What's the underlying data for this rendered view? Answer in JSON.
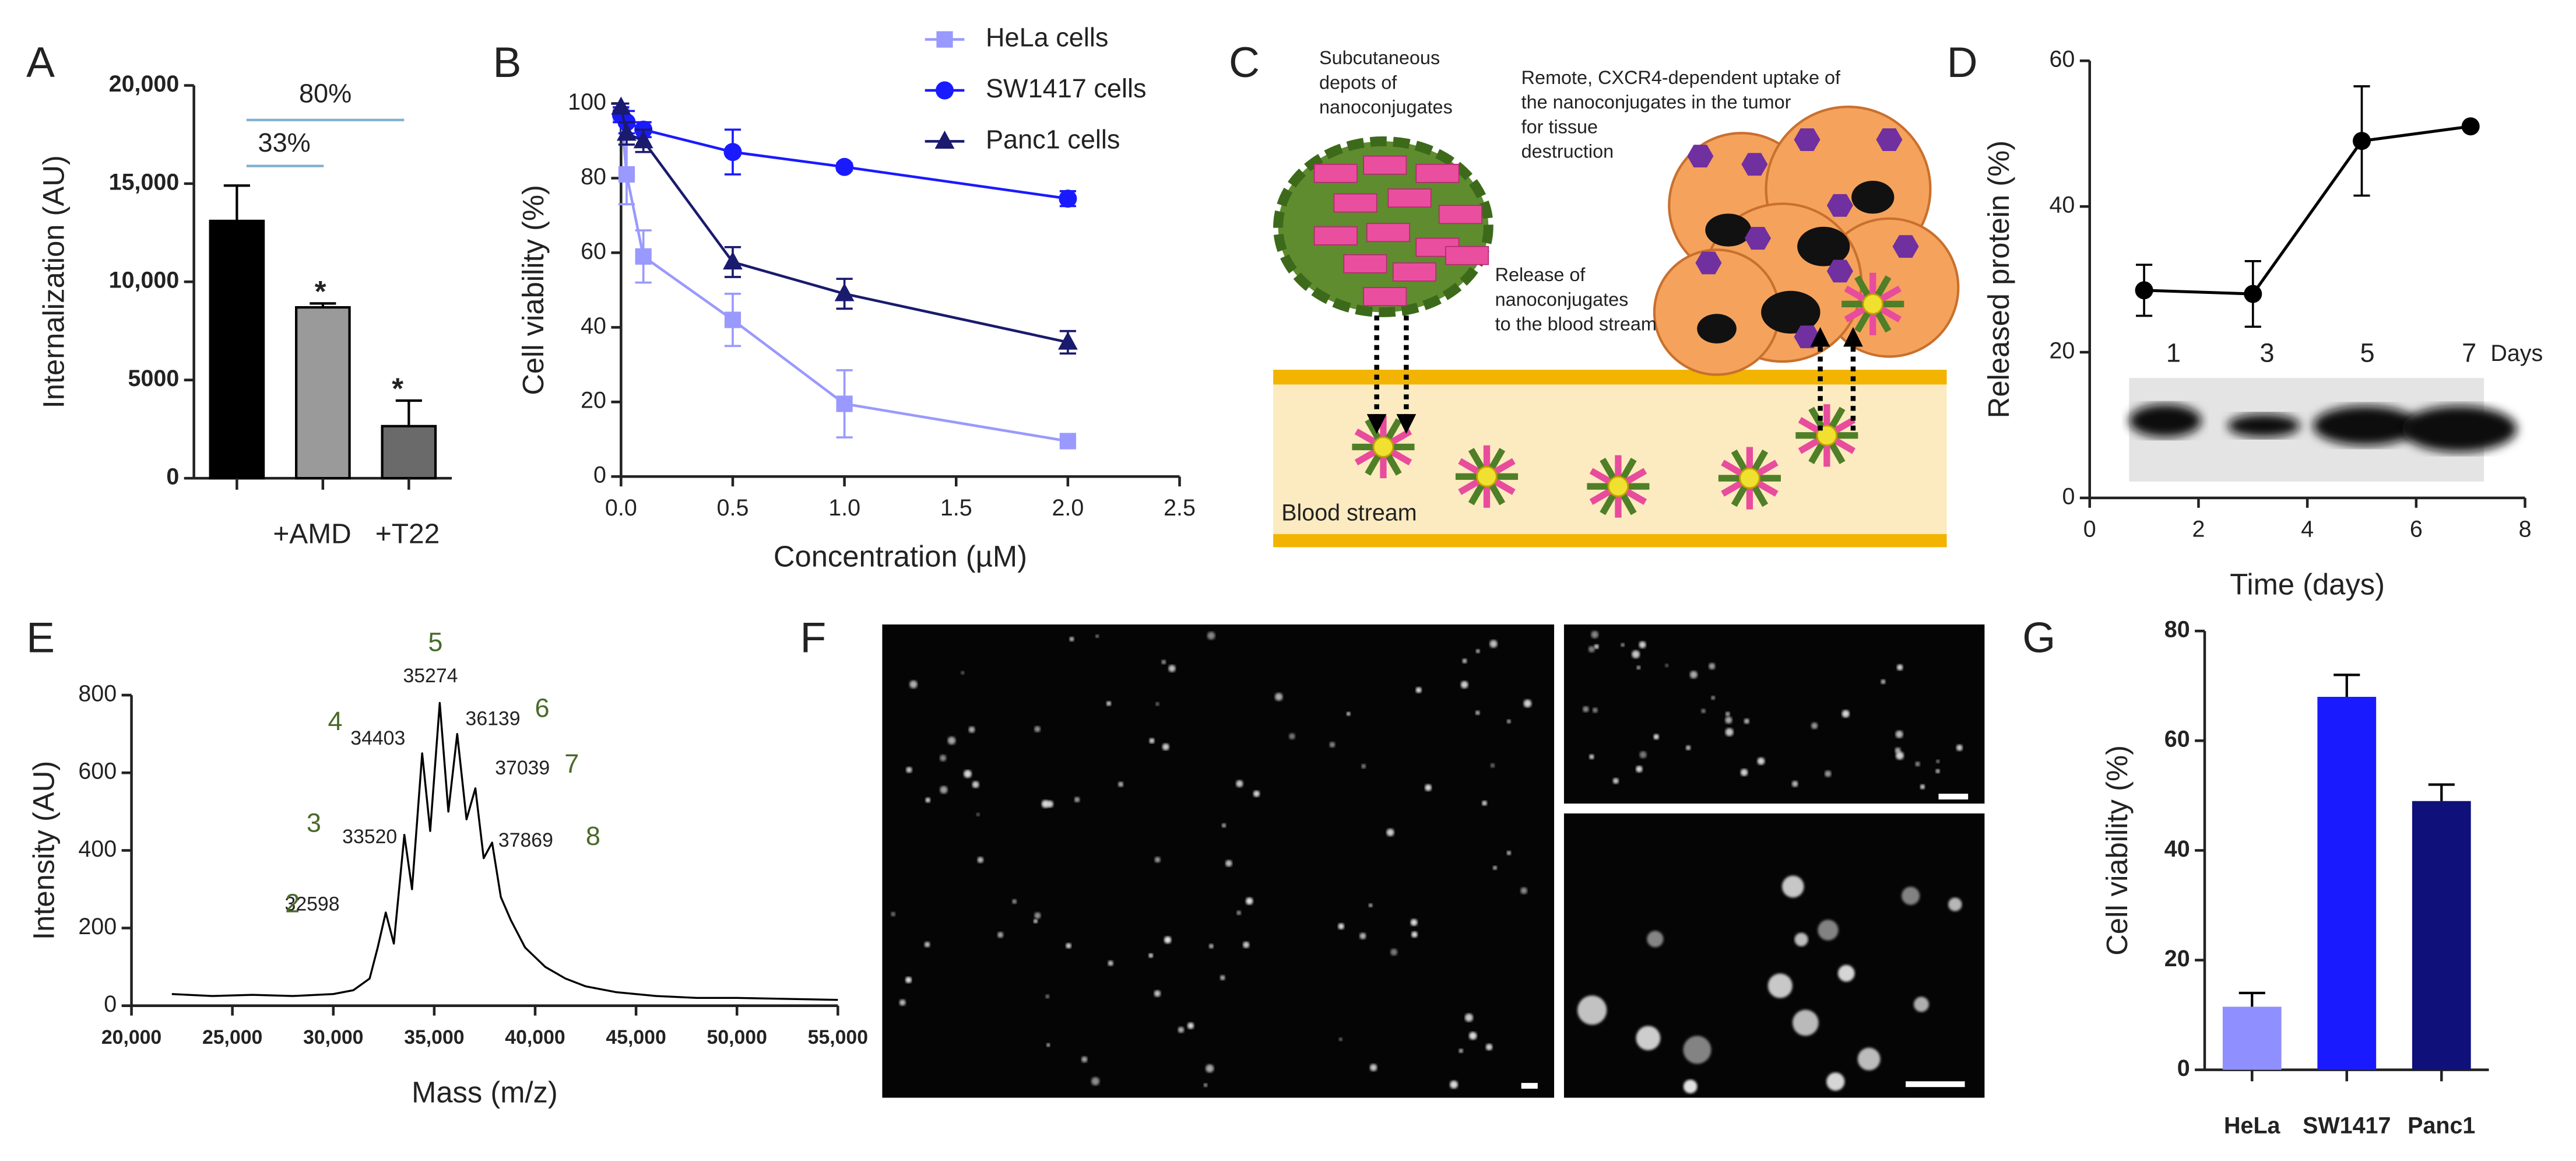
{
  "chart_data": [
    {
      "panel": "A",
      "type": "bar",
      "ylabel": "Internalization (AU)",
      "categories": [
        null,
        "+AMD",
        "+T22"
      ],
      "values": [
        13100,
        8700,
        2650
      ],
      "errors": [
        1800,
        200,
        1300
      ],
      "colors": [
        "#000000",
        "#9a9a9a",
        "#6a6a6a"
      ],
      "ylim": [
        0,
        20000
      ],
      "yticks": [
        0,
        5000,
        {
          "value": 10000,
          "label": "10,000"
        },
        {
          "value": 15000,
          "label": "15,000"
        },
        {
          "value": 20000,
          "label": "20,000"
        }
      ],
      "annotations": [
        "80%",
        "33%",
        "*",
        "*"
      ]
    },
    {
      "panel": "B",
      "type": "line",
      "ylabel": "Cell viability (%)",
      "xlabel": "Concentration (µM)",
      "x": [
        0,
        0.025,
        0.1,
        0.5,
        1,
        2
      ],
      "series": [
        {
          "name": "HeLa cells",
          "color": "#9999ff",
          "marker": "square",
          "values": [
            97,
            81,
            59,
            42,
            19.5,
            9.5
          ],
          "errors": [
            2,
            8,
            7,
            7,
            9,
            1
          ]
        },
        {
          "name": "SW1417 cells",
          "color": "#1a1aff",
          "marker": "circle",
          "values": [
            97,
            95,
            93,
            87,
            83,
            74.5
          ],
          "errors": [
            2,
            3,
            2,
            6,
            1,
            2
          ]
        },
        {
          "name": "Panc1 cells",
          "color": "#1a1a6e",
          "marker": "triangle",
          "values": [
            99,
            92,
            90,
            57.5,
            49,
            36
          ],
          "errors": [
            1,
            3,
            3,
            4,
            4,
            3
          ]
        }
      ],
      "xlim": [
        0,
        2.5
      ],
      "xticks": [
        {
          "value": 0,
          "label": "0.0"
        },
        0.5,
        {
          "value": 1,
          "label": "1.0"
        },
        1.5,
        {
          "value": 2,
          "label": "2.0"
        },
        2.5
      ],
      "ylim": [
        0,
        100
      ],
      "yticks": [
        0,
        20,
        40,
        60,
        80,
        100
      ]
    },
    {
      "panel": "D",
      "type": "line",
      "ylabel": "Released protein (%)",
      "xlabel": "Time (days)",
      "x": [
        1,
        3,
        5,
        7
      ],
      "values": [
        28.5,
        28,
        49,
        51
      ],
      "errors": [
        3.5,
        4.5,
        7.5,
        0
      ],
      "color": "#000000",
      "marker": "circle",
      "xlim": [
        0,
        8
      ],
      "xticks": [
        0,
        2,
        4,
        6,
        8
      ],
      "ylim": [
        0,
        60
      ],
      "yticks": [
        0,
        20,
        40,
        60
      ],
      "inset_labels": [
        "1",
        "3",
        "5",
        "7"
      ],
      "inset_unit": "Days"
    },
    {
      "panel": "E",
      "type": "line",
      "ylabel": "Intensity (AU)",
      "xlabel": "Mass (m/z)",
      "color": "#000000",
      "x": [
        22000,
        24000,
        26000,
        28000,
        30000,
        31000,
        31800,
        32200,
        32598,
        33000,
        33520,
        33900,
        34403,
        34800,
        35274,
        35700,
        36139,
        36600,
        37039,
        37450,
        37869,
        38300,
        38800,
        39500,
        40500,
        41500,
        42500,
        44000,
        46000,
        48000,
        50000,
        52000,
        55000
      ],
      "values": [
        30,
        25,
        28,
        25,
        30,
        40,
        70,
        150,
        240,
        160,
        440,
        300,
        650,
        450,
        780,
        500,
        700,
        480,
        560,
        380,
        420,
        280,
        220,
        150,
        100,
        70,
        50,
        35,
        25,
        20,
        20,
        18,
        15
      ],
      "xlim": [
        20000,
        55000
      ],
      "xticks": [
        {
          "value": 20000,
          "label": "20,000"
        },
        {
          "value": 25000,
          "label": "25,000"
        },
        {
          "value": 30000,
          "label": "30,000"
        },
        {
          "value": 35000,
          "label": "35,000"
        },
        {
          "value": 40000,
          "label": "40,000"
        },
        {
          "value": 45000,
          "label": "45,000"
        },
        {
          "value": 50000,
          "label": "50,000"
        },
        {
          "value": 55000,
          "label": "55,000"
        }
      ],
      "ylim": [
        0,
        800
      ],
      "yticks": [
        0,
        200,
        400,
        600,
        800
      ],
      "peaks": [
        {
          "number": "2",
          "mass": 32598
        },
        {
          "number": "3",
          "mass": 33520
        },
        {
          "number": "4",
          "mass": 34403
        },
        {
          "number": "5",
          "mass": 35274
        },
        {
          "number": "6",
          "mass": 36139
        },
        {
          "number": "7",
          "mass": 37039
        },
        {
          "number": "8",
          "mass": 37869
        }
      ]
    },
    {
      "panel": "G",
      "type": "bar",
      "ylabel": "Cell viability (%)",
      "categories": [
        "HeLa",
        "SW1417",
        "Panc1"
      ],
      "values": [
        11.5,
        68,
        49
      ],
      "errors": [
        2.5,
        4,
        3
      ],
      "colors": [
        "#8f8fff",
        "#1a1aff",
        "#10107a"
      ],
      "ylim": [
        0,
        80
      ],
      "yticks": [
        0,
        20,
        40,
        60,
        80
      ]
    }
  ],
  "diagram": {
    "panel": "C",
    "labels": [
      {
        "lines": [
          "Subcutaneous",
          "depots of",
          "nanoconjugates"
        ]
      },
      {
        "lines": [
          "Remote, CXCR4-dependent uptake of",
          "the nanoconjugates in the tumor",
          "for tissue",
          "destruction"
        ]
      },
      {
        "lines": [
          "Release of",
          "nanoconjugates",
          "to the blood stream"
        ]
      },
      {
        "lines": [
          "Blood stream"
        ]
      }
    ]
  },
  "micrograph": {
    "panel": "F"
  }
}
